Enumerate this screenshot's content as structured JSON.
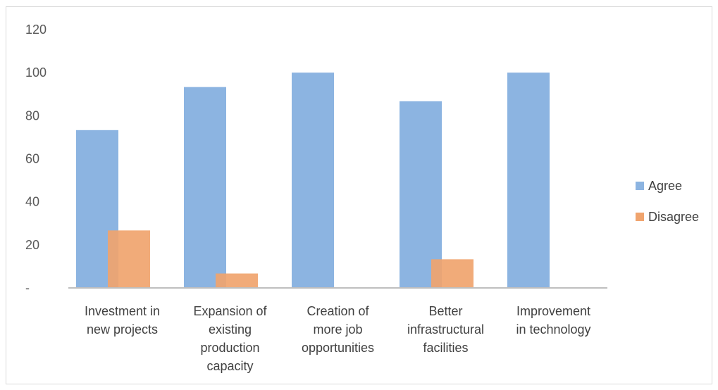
{
  "chart_data": {
    "type": "bar",
    "categories": [
      [
        "Investment in",
        "new projects"
      ],
      [
        "Expansion of",
        "existing",
        "production",
        "capacity"
      ],
      [
        "Creation of",
        "more job",
        "opportunities"
      ],
      [
        "Better",
        "infrastructural",
        "facilities"
      ],
      [
        "Improvement",
        "in technology"
      ]
    ],
    "series": [
      {
        "name": "Agree",
        "values": [
          73.3,
          93.3,
          100,
          86.7,
          100
        ],
        "color": "#8cb4e1"
      },
      {
        "name": "Disagree",
        "values": [
          26.7,
          6.7,
          0,
          13.3,
          0
        ],
        "color": "#f0a46e"
      }
    ],
    "ylim": [
      0,
      120
    ],
    "yticks": [
      0,
      20,
      40,
      60,
      80,
      100,
      120
    ],
    "ytick_labels": [
      "-",
      "20",
      "40",
      "60",
      "80",
      "100",
      "120"
    ],
    "legend_position": "right",
    "grid": false,
    "xlabel": "",
    "ylabel": "",
    "title": ""
  }
}
